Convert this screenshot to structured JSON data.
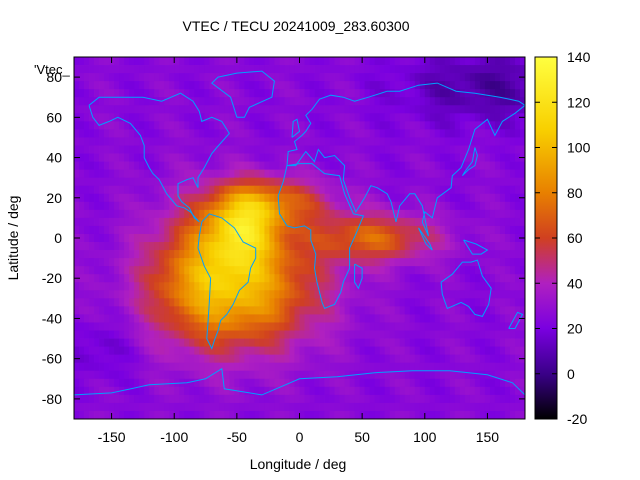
{
  "chart_data": {
    "type": "heatmap",
    "title": "VTEC / TECU 20241009_283.60300",
    "xlabel": "Longitude / deg",
    "ylabel": "Latitude / deg",
    "legend_label": "'Vtec_",
    "xlim": [
      -180,
      180
    ],
    "ylim": [
      -90,
      90
    ],
    "x_ticks": [
      -150,
      -100,
      -50,
      0,
      50,
      100,
      150
    ],
    "y_ticks": [
      -80,
      -60,
      -40,
      -20,
      0,
      20,
      40,
      60,
      80
    ],
    "colorbar": {
      "range": [
        -20,
        140
      ],
      "ticks": [
        -20,
        0,
        20,
        40,
        60,
        80,
        100,
        120,
        140
      ],
      "colormap": "gnuplot-rgbformulae-7-5-15",
      "colors": [
        "#000000",
        "#3a0088",
        "#7a00e0",
        "#b020c0",
        "#d04020",
        "#e88000",
        "#f8d000",
        "#ffff40"
      ]
    },
    "grid": false,
    "features": [
      {
        "name": "equatorial-anomaly-peak",
        "lon": -45,
        "lat": 5,
        "vtec": 135
      },
      {
        "name": "south-atlantic-high",
        "lon": -50,
        "lat": -25,
        "vtec": 95
      },
      {
        "name": "africa-indian-ocean-tongue",
        "lon": 60,
        "lat": 0,
        "vtec": 75
      },
      {
        "name": "north-pacific-low",
        "lon": 150,
        "lat": 75,
        "vtec": 5
      },
      {
        "name": "background",
        "vtec": 25
      }
    ],
    "coastline_color": "#00a0ff"
  }
}
